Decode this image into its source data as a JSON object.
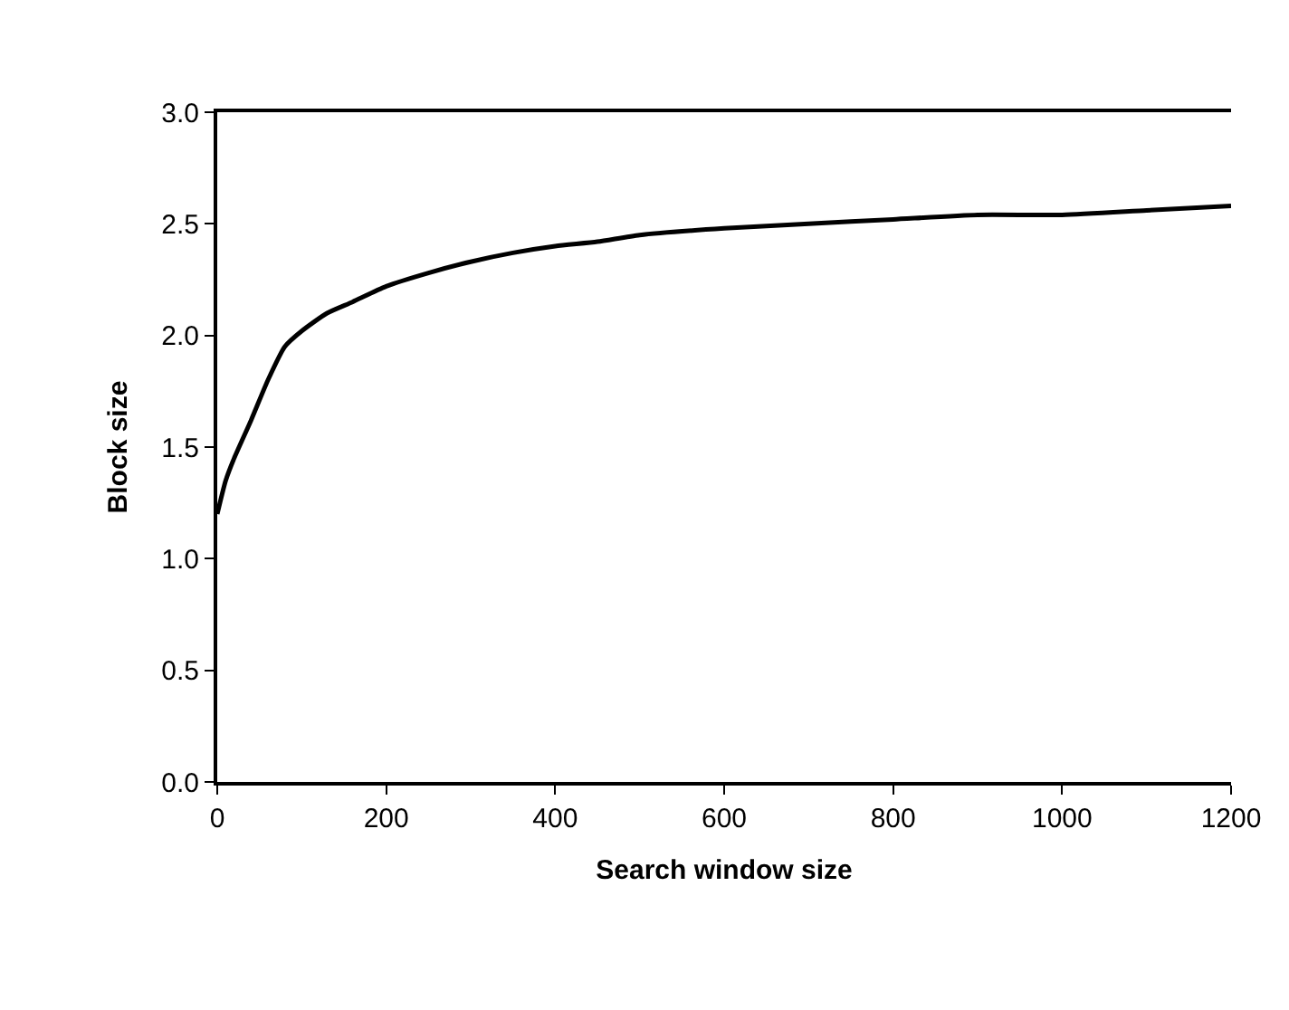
{
  "chart_data": {
    "type": "line",
    "xlabel": "Search window size",
    "ylabel": "Block size",
    "x": [
      0,
      10,
      20,
      40,
      60,
      80,
      100,
      130,
      160,
      200,
      250,
      300,
      350,
      400,
      450,
      500,
      600,
      700,
      800,
      900,
      1000,
      1100,
      1200
    ],
    "series": [
      {
        "color": "#000000",
        "values": [
          1.2,
          1.35,
          1.45,
          1.62,
          1.8,
          1.95,
          2.02,
          2.1,
          2.15,
          2.22,
          2.28,
          2.33,
          2.37,
          2.4,
          2.42,
          2.45,
          2.48,
          2.5,
          2.52,
          2.54,
          2.54,
          2.56,
          2.58
        ]
      }
    ],
    "xlim": [
      0,
      1200
    ],
    "xticks": [
      0,
      200,
      400,
      600,
      800,
      1000,
      1200
    ],
    "ylim": [
      0,
      3
    ],
    "yticks": [
      {
        "value": 0,
        "label": "0.0"
      },
      {
        "value": 0.5,
        "label": "0.5"
      },
      {
        "value": 1,
        "label": "1.0"
      },
      {
        "value": 1.5,
        "label": "1.5"
      },
      {
        "value": 2,
        "label": "2.0"
      },
      {
        "value": 2.5,
        "label": "2.5"
      },
      {
        "value": 3,
        "label": "3.0"
      }
    ],
    "legend": false,
    "marker": "none",
    "line_style": "solid"
  }
}
